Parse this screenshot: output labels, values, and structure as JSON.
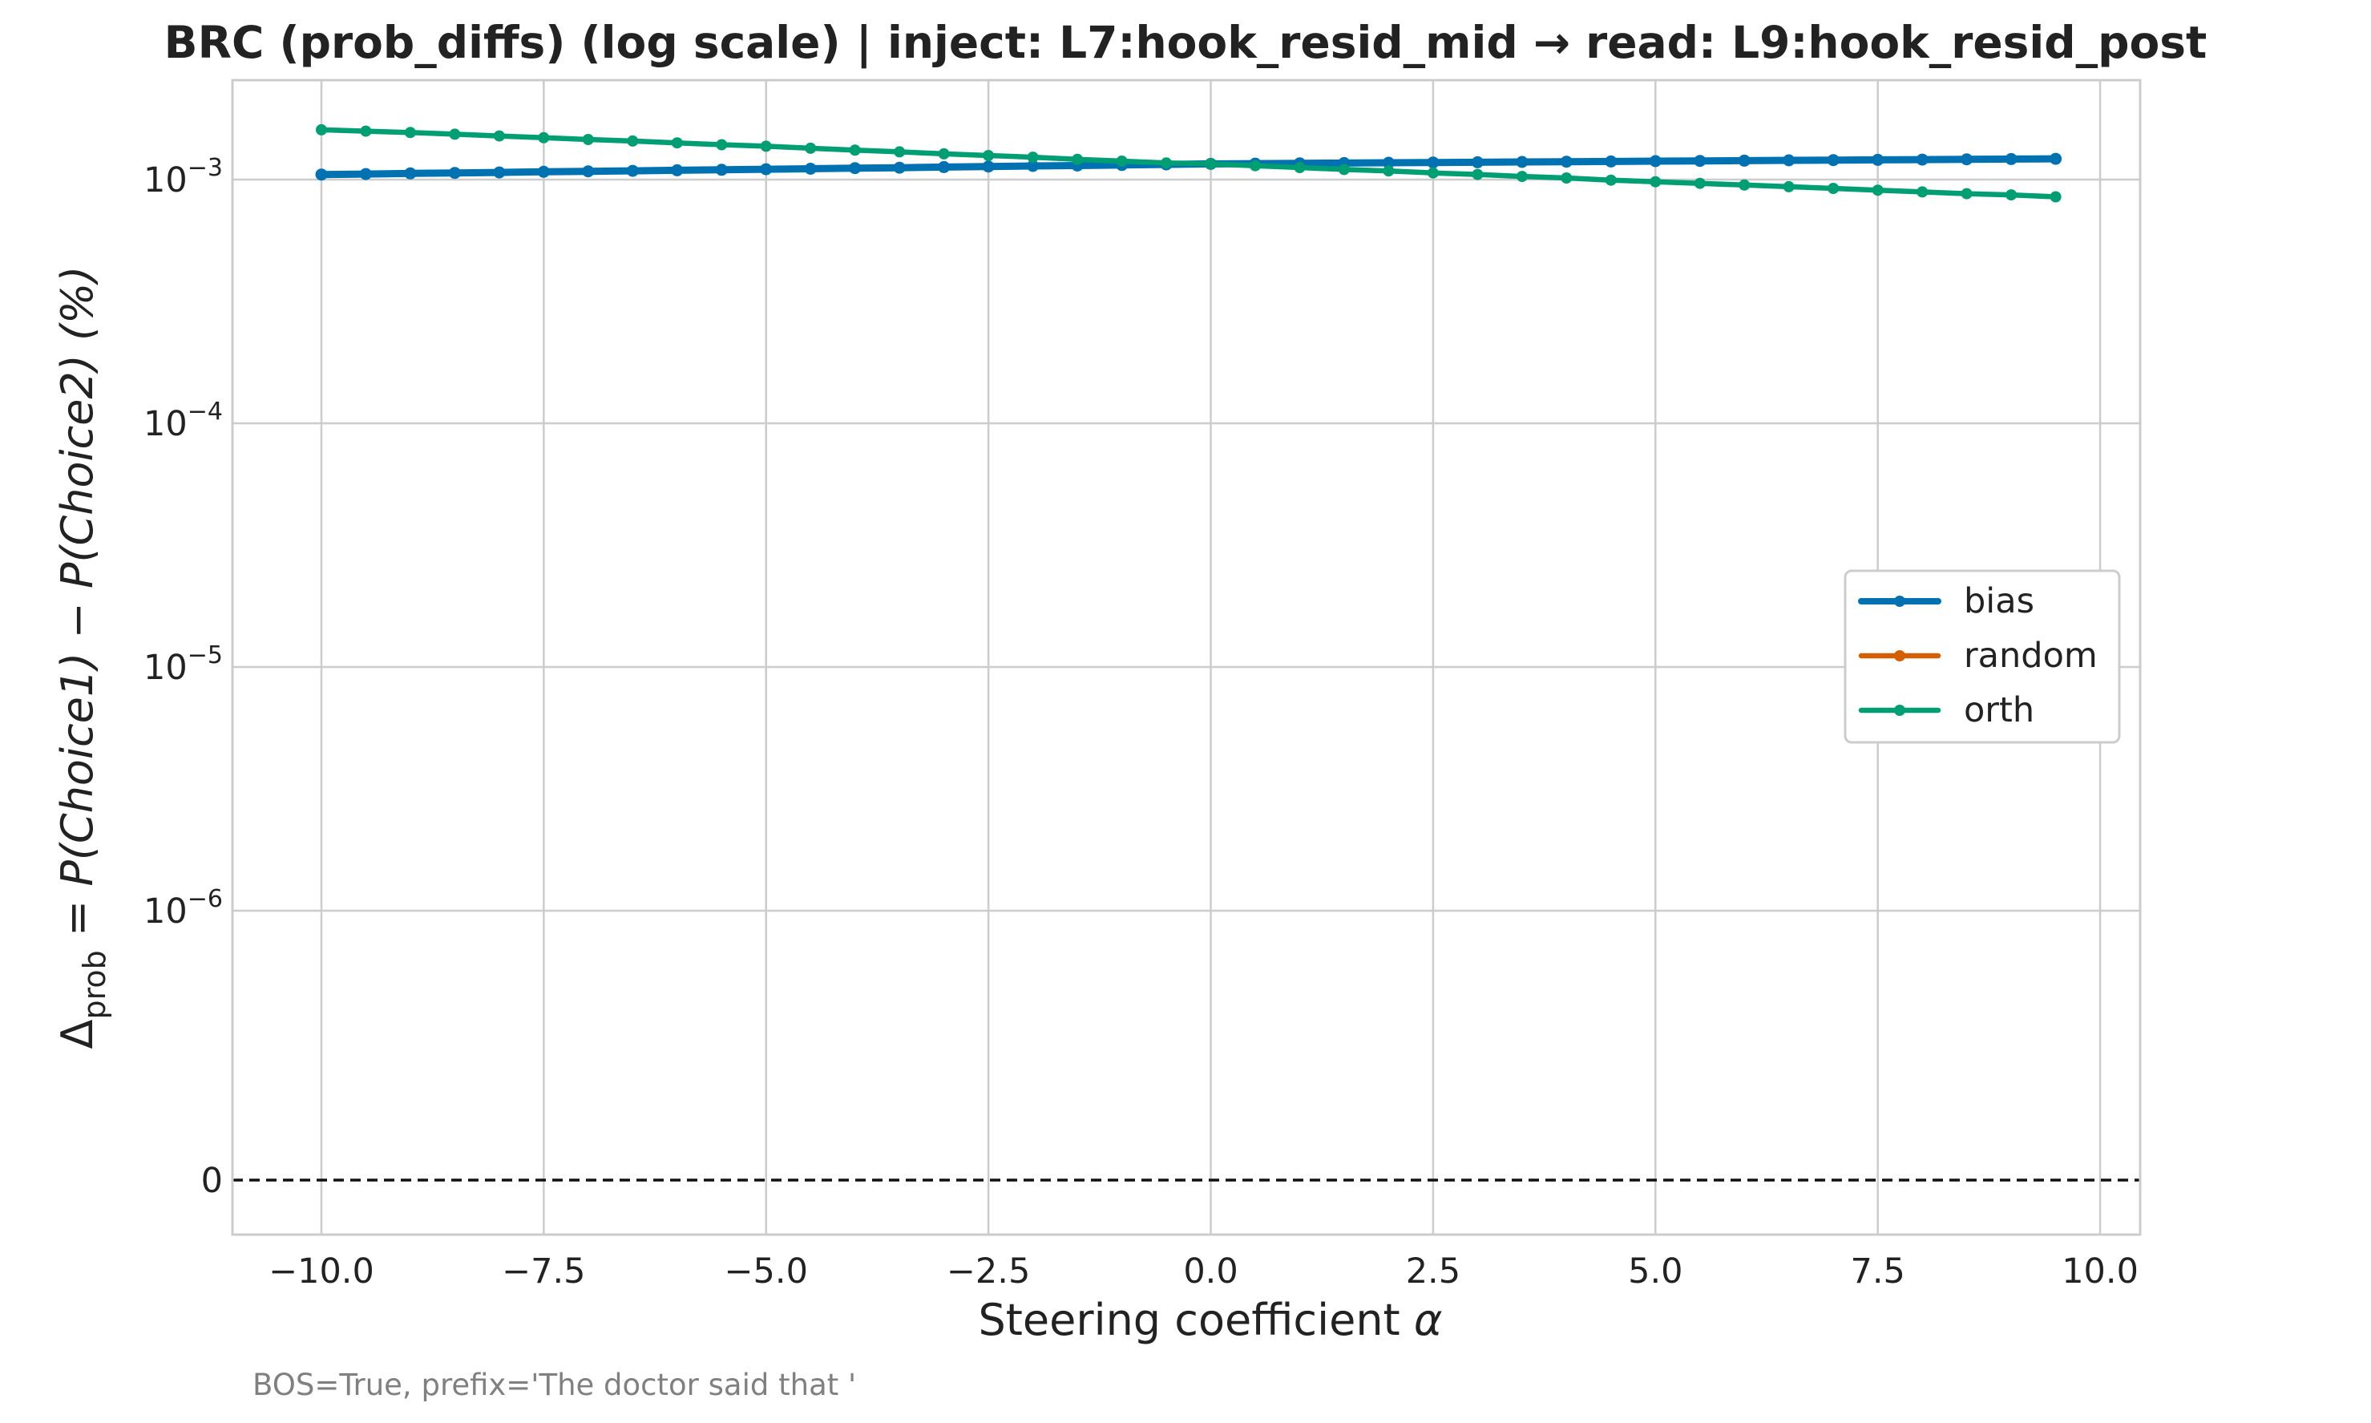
{
  "chart_data": {
    "type": "line",
    "title": "BRC (prob_diffs) (log scale) | inject: L7:hook_resid_mid → read: L9:hook_resid_post",
    "xlabel": "Steering coefficient",
    "xlabel_symbol": "α",
    "ylabel": {
      "delta": "Δ",
      "sub": "prob",
      "expr": " = P(Choice1) − P(Choice2) (%)"
    },
    "footnote": "BOS=True, prefix='The doctor said that '",
    "x_ticks": [
      {
        "value": -10.0,
        "label": "−10.0"
      },
      {
        "value": -7.5,
        "label": "−7.5"
      },
      {
        "value": -5.0,
        "label": "−5.0"
      },
      {
        "value": -2.5,
        "label": "−2.5"
      },
      {
        "value": 0.0,
        "label": "0.0"
      },
      {
        "value": 2.5,
        "label": "2.5"
      },
      {
        "value": 5.0,
        "label": "5.0"
      },
      {
        "value": 7.5,
        "label": "7.5"
      },
      {
        "value": 10.0,
        "label": "10.0"
      }
    ],
    "y_ticks": [
      {
        "exp": -3,
        "base": "10",
        "sup": "−3"
      },
      {
        "exp": -4,
        "base": "10",
        "sup": "−4"
      },
      {
        "exp": -5,
        "base": "10",
        "sup": "−5"
      },
      {
        "exp": -6,
        "base": "10",
        "sup": "−6"
      },
      {
        "zero": true,
        "label": "0"
      }
    ],
    "xlim": [
      -11.0,
      10.45
    ],
    "yscale": "log (symlog with zero baseline)",
    "grid": true,
    "zero_line": {
      "style": "dashed",
      "color": "#111111"
    },
    "legend": {
      "placement": "center-right"
    },
    "x": [
      -10.0,
      -9.5,
      -9.0,
      -8.5,
      -8.0,
      -7.5,
      -7.0,
      -6.5,
      -6.0,
      -5.5,
      -5.0,
      -4.5,
      -4.0,
      -3.5,
      -3.0,
      -2.5,
      -2.0,
      -1.5,
      -1.0,
      -0.5,
      0.0,
      0.5,
      1.0,
      1.5,
      2.0,
      2.5,
      3.0,
      3.5,
      4.0,
      4.5,
      5.0,
      5.5,
      6.0,
      6.5,
      7.0,
      7.5,
      8.0,
      8.5,
      9.0,
      9.5
    ],
    "series": [
      {
        "name": "random",
        "color": "#d55e00",
        "values": [
          0.001049,
          0.001054,
          0.00106,
          0.001065,
          0.00107,
          0.001076,
          0.001081,
          0.001086,
          0.001092,
          0.001097,
          0.001103,
          0.001108,
          0.001114,
          0.001119,
          0.001125,
          0.001131,
          0.001137,
          0.001142,
          0.001148,
          0.001154,
          0.00116,
          0.001163,
          0.001166,
          0.001169,
          0.001172,
          0.001175,
          0.001178,
          0.001181,
          0.001184,
          0.001187,
          0.00119,
          0.001193,
          0.001196,
          0.001199,
          0.001202,
          0.001205,
          0.001208,
          0.001211,
          0.001214,
          0.001217
        ]
      },
      {
        "name": "bias",
        "color": "#0072b2",
        "values": [
          0.001049,
          0.001054,
          0.00106,
          0.001065,
          0.00107,
          0.001076,
          0.001081,
          0.001086,
          0.001092,
          0.001097,
          0.001103,
          0.001108,
          0.001114,
          0.001119,
          0.001125,
          0.001131,
          0.001137,
          0.001142,
          0.001148,
          0.001154,
          0.00116,
          0.001163,
          0.001166,
          0.001169,
          0.001172,
          0.001175,
          0.001178,
          0.001181,
          0.001184,
          0.001187,
          0.00119,
          0.001193,
          0.001196,
          0.001199,
          0.001202,
          0.001205,
          0.001208,
          0.001211,
          0.001214,
          0.001217
        ]
      },
      {
        "name": "orth",
        "color": "#009e73",
        "values": [
          0.0016,
          0.00158,
          0.00156,
          0.001535,
          0.00151,
          0.001485,
          0.00146,
          0.00144,
          0.001415,
          0.00139,
          0.00137,
          0.001345,
          0.00132,
          0.0013,
          0.001275,
          0.001255,
          0.001235,
          0.00121,
          0.00119,
          0.00117,
          0.00116,
          0.00114,
          0.00112,
          0.0011,
          0.001085,
          0.001065,
          0.00105,
          0.00103,
          0.001015,
          0.000995,
          0.00098,
          0.000965,
          0.00095,
          0.000935,
          0.00092,
          0.000905,
          0.00089,
          0.000875,
          0.000865,
          0.00085
        ]
      }
    ]
  }
}
